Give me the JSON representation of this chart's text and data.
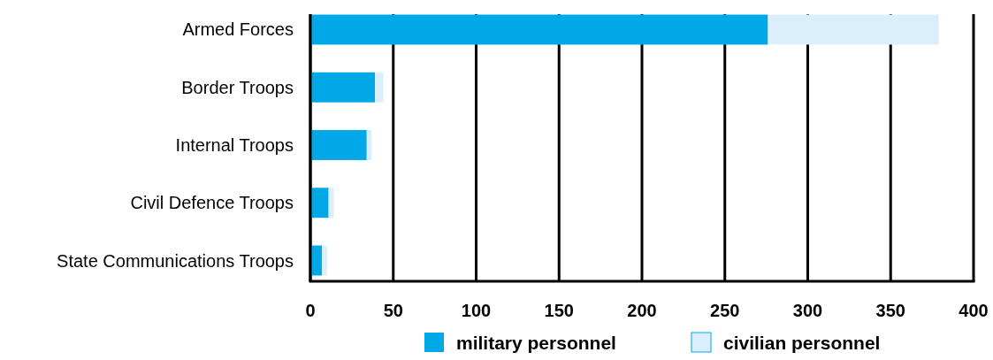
{
  "chart_data": {
    "type": "bar",
    "orientation": "horizontal",
    "stacked": true,
    "categories": [
      "Armed Forces",
      "Border Troops",
      "Internal Troops",
      "Civil Defence Troops",
      "State Communications Troops"
    ],
    "series": [
      {
        "name": "military personnel",
        "color": "#00a8e8",
        "values": [
          276,
          39,
          34,
          11,
          7
        ]
      },
      {
        "name": "civilian personnel",
        "color": "#dbeefc",
        "values": [
          103,
          5,
          3,
          3,
          3
        ]
      }
    ],
    "xlim": [
      0,
      400
    ],
    "xticks": [
      0,
      50,
      100,
      150,
      200,
      250,
      300,
      350,
      400
    ],
    "grid": "x",
    "legend": "bottom"
  }
}
